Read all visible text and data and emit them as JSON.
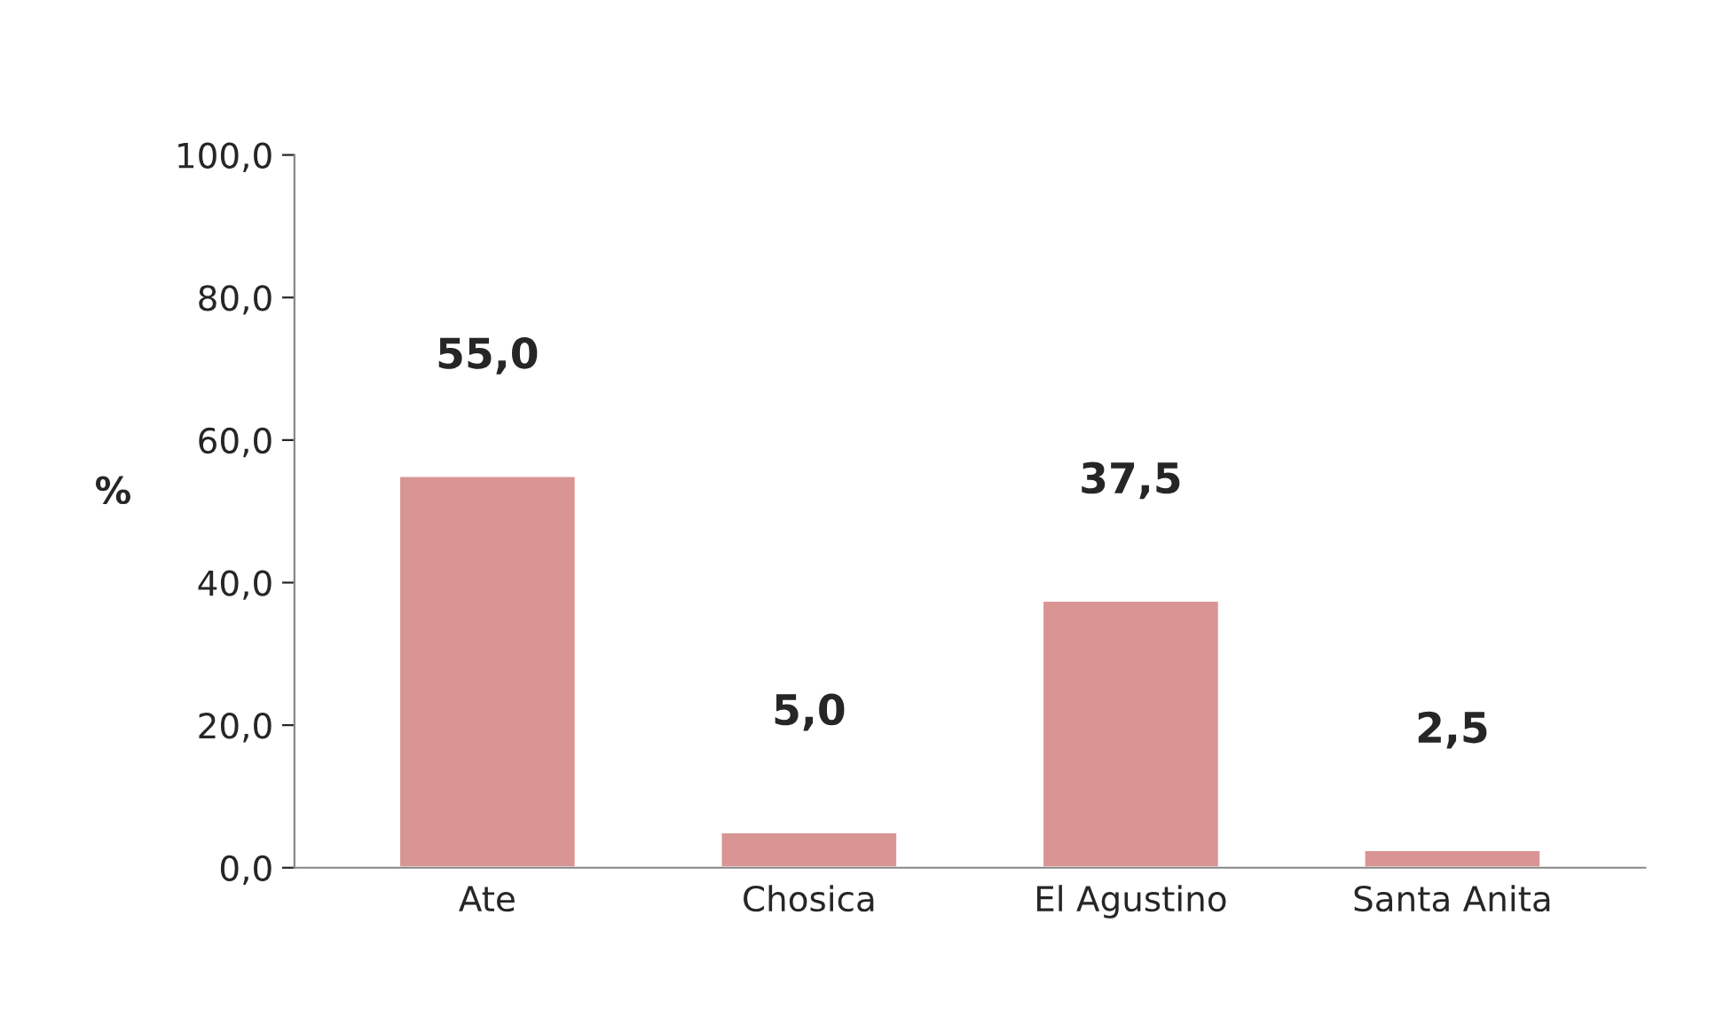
{
  "chart_data": {
    "type": "bar",
    "ylabel": "%",
    "categories": [
      "Ate",
      "Chosica",
      "El Agustino",
      "Santa Anita"
    ],
    "values": [
      55.0,
      5.0,
      37.5,
      2.5
    ],
    "color": "#d99594",
    "value_labels": [
      "55,0",
      "5,0",
      "37,5",
      "2,5"
    ],
    "ylim": [
      0,
      100
    ],
    "yticks": [
      {
        "value": 0,
        "label": "0,0"
      },
      {
        "value": 20,
        "label": "20,0"
      },
      {
        "value": 40,
        "label": "40,0"
      },
      {
        "value": 60,
        "label": "60,0"
      },
      {
        "value": 80,
        "label": "80,0"
      },
      {
        "value": 100,
        "label": "100,0"
      }
    ],
    "grid": false,
    "legend": false
  }
}
